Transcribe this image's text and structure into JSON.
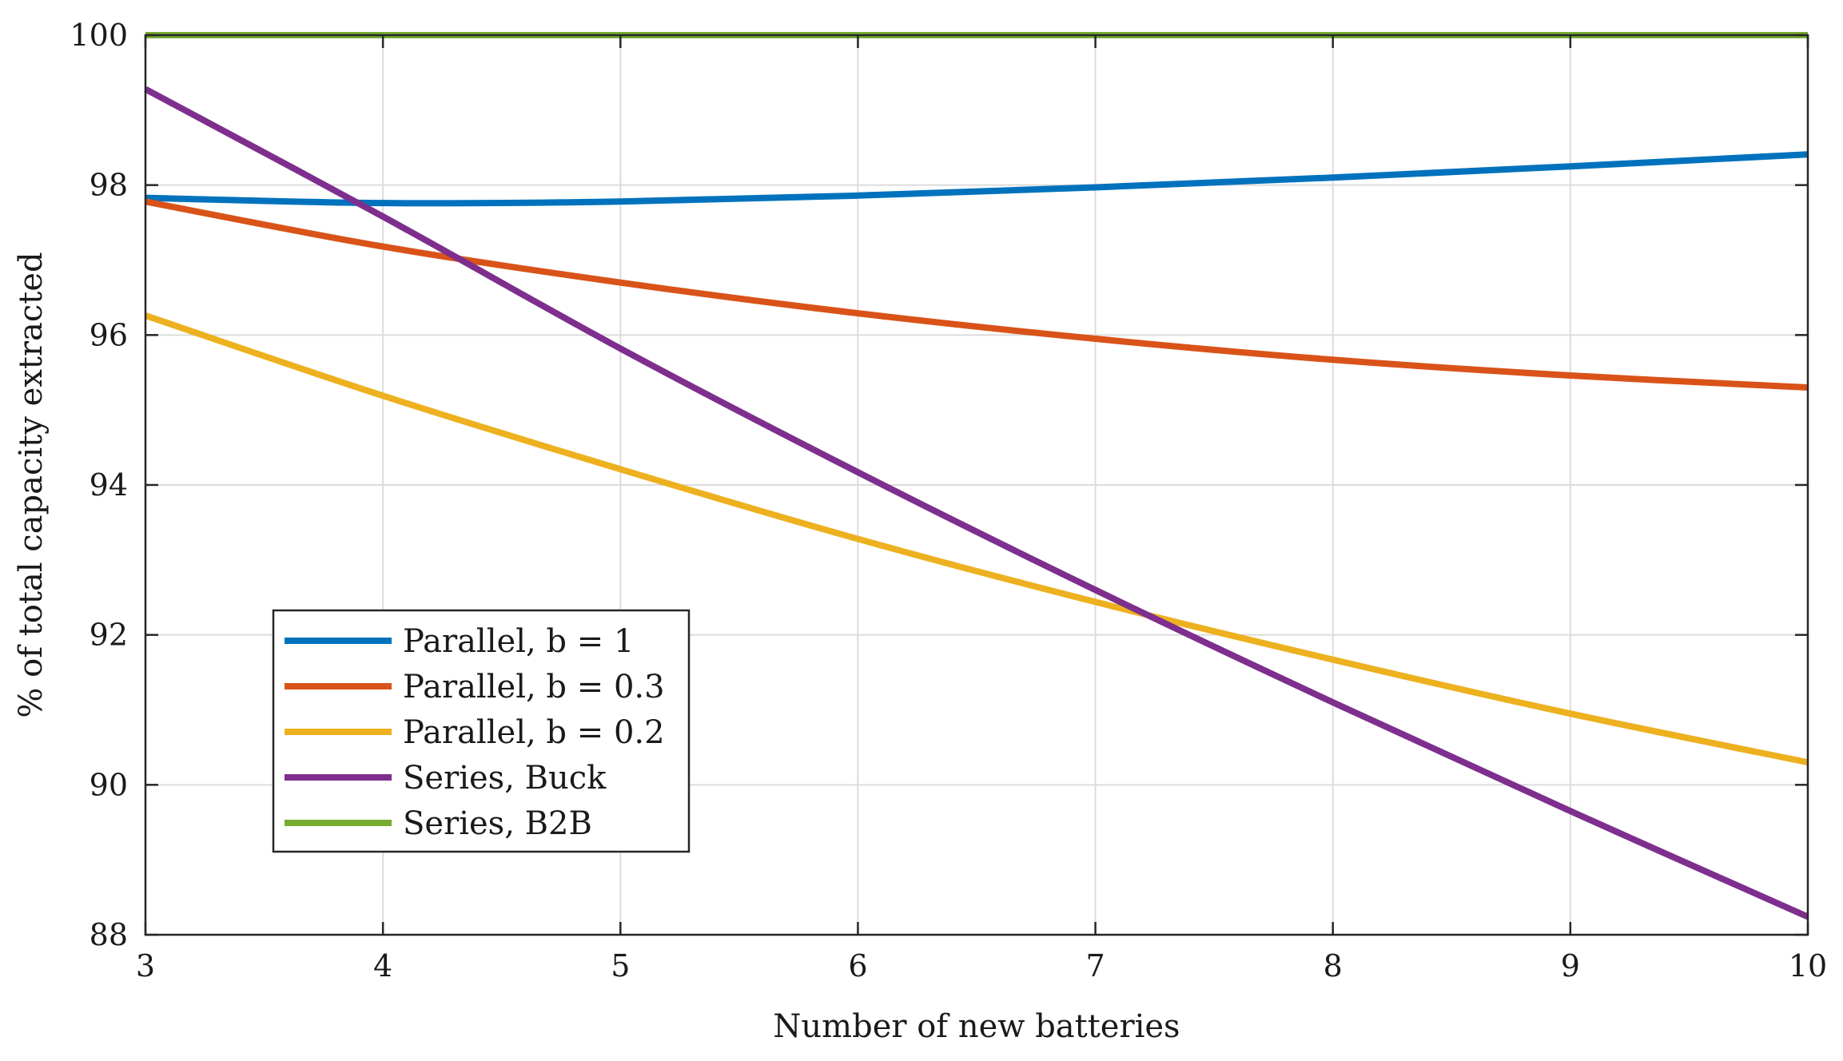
{
  "chart_data": {
    "type": "line",
    "title": "",
    "xlabel": "Number of new batteries",
    "ylabel": "% of total capacity extracted",
    "xlim": [
      3,
      10
    ],
    "ylim": [
      88,
      100
    ],
    "xticks": [
      3,
      4,
      5,
      6,
      7,
      8,
      9,
      10
    ],
    "yticks": [
      88,
      90,
      92,
      94,
      96,
      98,
      100
    ],
    "grid": true,
    "legend_position": "bottom-left",
    "x": [
      3,
      4,
      5,
      6,
      7,
      8,
      9,
      10
    ],
    "series": [
      {
        "name": "Parallel, b = 1",
        "color": "#0072BD",
        "values": [
          97.83,
          97.76,
          97.78,
          97.86,
          97.97,
          98.1,
          98.25,
          98.41
        ]
      },
      {
        "name": "Parallel, b = 0.3",
        "color": "#D95319",
        "values": [
          97.78,
          97.18,
          96.7,
          96.29,
          95.95,
          95.67,
          95.46,
          95.3
        ]
      },
      {
        "name": "Parallel, b = 0.2",
        "color": "#EDB120",
        "values": [
          96.26,
          95.19,
          94.21,
          93.28,
          92.44,
          91.67,
          90.95,
          90.3
        ]
      },
      {
        "name": "Series, Buck",
        "color": "#7E2F8E",
        "values": [
          99.28,
          97.58,
          95.82,
          94.17,
          92.6,
          91.1,
          89.65,
          88.24
        ]
      },
      {
        "name": "Series, B2B",
        "color": "#77AC30",
        "values": [
          100,
          100,
          100,
          100,
          100,
          100,
          100,
          100
        ]
      }
    ]
  }
}
